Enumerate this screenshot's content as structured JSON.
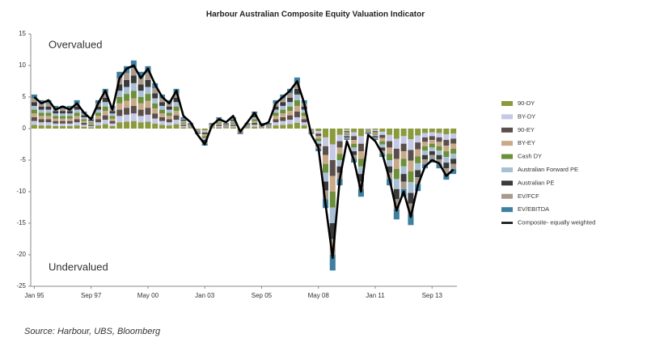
{
  "chart_data": {
    "type": "stacked-bar-line",
    "title": "Harbour Australian Composite Equity Valuation Indicator",
    "annotations": [
      "Overvalued",
      "Undervalued"
    ],
    "source": "Source: Harbour, UBS, Bloomberg",
    "legend": "right",
    "categories": [
      "Jan 95",
      null,
      null,
      null,
      null,
      null,
      null,
      null,
      "Sep 97",
      null,
      null,
      null,
      null,
      null,
      null,
      null,
      "May 00",
      null,
      null,
      null,
      null,
      null,
      null,
      null,
      "Jan 03",
      null,
      null,
      null,
      null,
      null,
      null,
      null,
      "Sep 05",
      null,
      null,
      null,
      null,
      null,
      null,
      null,
      "May 08",
      null,
      null,
      null,
      null,
      null,
      null,
      null,
      "Jan 11",
      null,
      null,
      null,
      null,
      null,
      null,
      null,
      "Sep 13",
      null,
      null,
      null
    ],
    "ylim": [
      -25,
      15
    ],
    "yticks": [
      -25,
      -20,
      -15,
      -10,
      -5,
      0,
      5,
      10,
      15
    ],
    "series": [
      {
        "name": "90-DY",
        "color": "#8a9a3c",
        "values": [
          0.6,
          0.5,
          0.5,
          0.4,
          0.4,
          0.4,
          0.5,
          0.3,
          0.2,
          0.5,
          0.7,
          0.4,
          1.0,
          1.1,
          1.2,
          1.0,
          1.1,
          0.8,
          0.6,
          0.5,
          0.7,
          0.2,
          0.1,
          -0.1,
          -0.3,
          0.1,
          0.2,
          0.1,
          0.2,
          -0.1,
          0.1,
          0.3,
          0.1,
          0.1,
          0.5,
          0.6,
          0.7,
          0.9,
          0.5,
          -0.1,
          -0.4,
          -1.4,
          -2.5,
          -1.0,
          -0.2,
          -0.6,
          -1.2,
          -0.1,
          -0.2,
          -0.5,
          -1.0,
          -1.6,
          -1.2,
          -1.7,
          -1.1,
          -0.7,
          -0.6,
          -0.7,
          -0.9,
          -0.8
        ]
      },
      {
        "name": "BY-DY",
        "color": "#c5c8e6",
        "values": [
          0.6,
          0.5,
          0.5,
          0.4,
          0.4,
          0.4,
          0.5,
          0.3,
          0.2,
          0.5,
          0.7,
          0.4,
          1.0,
          1.1,
          1.2,
          1.0,
          1.1,
          0.8,
          0.6,
          0.5,
          0.7,
          0.2,
          0.1,
          -0.1,
          -0.3,
          0.1,
          0.2,
          0.1,
          0.2,
          -0.1,
          0.1,
          0.3,
          0.1,
          0.1,
          0.5,
          0.6,
          0.7,
          0.9,
          0.5,
          -0.1,
          -0.4,
          -1.4,
          -2.5,
          -1.0,
          -0.2,
          -0.6,
          -1.2,
          -0.1,
          -0.2,
          -0.5,
          -1.0,
          -1.6,
          -1.2,
          -1.7,
          -1.1,
          -0.7,
          -0.6,
          -0.7,
          -0.9,
          -0.8
        ]
      },
      {
        "name": "90-EY",
        "color": "#5a4f4a",
        "values": [
          0.6,
          0.5,
          0.5,
          0.4,
          0.4,
          0.4,
          0.5,
          0.3,
          0.2,
          0.5,
          0.7,
          0.4,
          1.0,
          1.1,
          1.2,
          1.0,
          1.1,
          0.8,
          0.6,
          0.5,
          0.7,
          0.2,
          0.1,
          -0.1,
          -0.3,
          0.1,
          0.2,
          0.1,
          0.2,
          -0.1,
          0.1,
          0.3,
          0.1,
          0.1,
          0.5,
          0.6,
          0.7,
          0.9,
          0.5,
          -0.1,
          -0.4,
          -1.4,
          -2.5,
          -1.0,
          -0.2,
          -0.6,
          -1.2,
          -0.1,
          -0.2,
          -0.5,
          -1.0,
          -1.6,
          -1.2,
          -1.7,
          -1.1,
          -0.7,
          -0.6,
          -0.7,
          -0.9,
          -0.8
        ]
      },
      {
        "name": "BY-EY",
        "color": "#c8a98a",
        "values": [
          0.6,
          0.5,
          0.5,
          0.4,
          0.4,
          0.4,
          0.5,
          0.3,
          0.2,
          0.5,
          0.7,
          0.4,
          1.0,
          1.1,
          1.2,
          1.0,
          1.1,
          0.8,
          0.6,
          0.5,
          0.7,
          0.2,
          0.1,
          -0.1,
          -0.3,
          0.1,
          0.2,
          0.1,
          0.2,
          -0.1,
          0.1,
          0.3,
          0.1,
          0.1,
          0.5,
          0.6,
          0.7,
          0.9,
          0.5,
          -0.1,
          -0.4,
          -1.4,
          -2.5,
          -1.0,
          -0.2,
          -0.6,
          -1.2,
          -0.1,
          -0.2,
          -0.5,
          -1.0,
          -1.6,
          -1.2,
          -1.7,
          -1.1,
          -0.7,
          -0.6,
          -0.7,
          -0.9,
          -0.8
        ]
      },
      {
        "name": "Cash DY",
        "color": "#6b8f3a",
        "values": [
          0.6,
          0.5,
          0.5,
          0.4,
          0.4,
          0.4,
          0.5,
          0.3,
          0.2,
          0.5,
          0.7,
          0.4,
          1.0,
          1.1,
          1.2,
          1.0,
          1.1,
          0.8,
          0.6,
          0.5,
          0.7,
          0.2,
          0.1,
          -0.1,
          -0.3,
          0.1,
          0.2,
          0.1,
          0.2,
          -0.1,
          0.1,
          0.3,
          0.1,
          0.1,
          0.5,
          0.6,
          0.7,
          0.9,
          0.5,
          -0.1,
          -0.4,
          -1.4,
          -2.5,
          -1.0,
          -0.2,
          -0.6,
          -1.2,
          -0.1,
          -0.2,
          -0.5,
          -1.0,
          -1.6,
          -1.2,
          -1.7,
          -1.1,
          -0.7,
          -0.6,
          -0.7,
          -0.9,
          -0.8
        ]
      },
      {
        "name": "Australian Forward PE",
        "color": "#a9bfd6",
        "values": [
          0.6,
          0.5,
          0.5,
          0.4,
          0.4,
          0.4,
          0.5,
          0.3,
          0.2,
          0.5,
          0.7,
          0.4,
          1.0,
          1.1,
          1.2,
          1.0,
          1.1,
          0.8,
          0.6,
          0.5,
          0.7,
          0.2,
          0.1,
          -0.1,
          -0.3,
          0.1,
          0.2,
          0.1,
          0.2,
          -0.1,
          0.1,
          0.3,
          0.1,
          0.1,
          0.5,
          0.6,
          0.7,
          0.9,
          0.5,
          -0.1,
          -0.4,
          -1.4,
          -2.5,
          -1.0,
          -0.2,
          -0.6,
          -1.2,
          -0.1,
          -0.2,
          -0.5,
          -1.0,
          -1.6,
          -1.2,
          -1.7,
          -1.1,
          -0.7,
          -0.6,
          -0.7,
          -0.9,
          -0.8
        ]
      },
      {
        "name": "Australian PE",
        "color": "#3a3a3a",
        "values": [
          0.6,
          0.5,
          0.5,
          0.4,
          0.4,
          0.4,
          0.5,
          0.3,
          0.2,
          0.5,
          0.7,
          0.4,
          1.0,
          1.1,
          1.2,
          1.0,
          1.1,
          0.8,
          0.6,
          0.5,
          0.7,
          0.2,
          0.1,
          -0.1,
          -0.3,
          0.1,
          0.2,
          0.1,
          0.2,
          -0.1,
          0.1,
          0.3,
          0.1,
          0.1,
          0.5,
          0.6,
          0.7,
          0.9,
          0.5,
          -0.1,
          -0.4,
          -1.4,
          -2.5,
          -1.0,
          -0.2,
          -0.6,
          -1.2,
          -0.1,
          -0.2,
          -0.5,
          -1.0,
          -1.6,
          -1.2,
          -1.7,
          -1.1,
          -0.7,
          -0.6,
          -0.7,
          -0.9,
          -0.8
        ]
      },
      {
        "name": "EV/FCF",
        "color": "#a99a8e",
        "values": [
          0.6,
          0.5,
          0.5,
          0.4,
          0.4,
          0.4,
          0.5,
          0.3,
          0.2,
          0.5,
          0.7,
          0.4,
          1.0,
          1.1,
          1.2,
          1.0,
          1.1,
          0.8,
          0.6,
          0.5,
          0.7,
          0.2,
          0.1,
          -0.1,
          -0.3,
          0.1,
          0.2,
          0.1,
          0.2,
          -0.1,
          0.1,
          0.3,
          0.1,
          0.1,
          0.5,
          0.6,
          0.7,
          0.9,
          0.5,
          -0.1,
          -0.4,
          -1.4,
          -2.5,
          -1.0,
          -0.2,
          -0.6,
          -1.2,
          -0.1,
          -0.2,
          -0.5,
          -1.0,
          -1.6,
          -1.2,
          -1.7,
          -1.1,
          -0.7,
          -0.6,
          -0.7,
          -0.9,
          -0.8
        ]
      },
      {
        "name": "EV/EBITDA",
        "color": "#3f7f9f",
        "values": [
          0.6,
          0.5,
          0.5,
          0.4,
          0.4,
          0.4,
          0.5,
          0.3,
          0.2,
          0.5,
          0.7,
          0.4,
          1.0,
          1.1,
          1.2,
          1.0,
          1.1,
          0.8,
          0.6,
          0.5,
          0.7,
          0.2,
          0.1,
          -0.1,
          -0.3,
          0.1,
          0.2,
          0.1,
          0.2,
          -0.1,
          0.1,
          0.3,
          0.1,
          0.1,
          0.5,
          0.6,
          0.7,
          0.9,
          0.5,
          -0.1,
          -0.4,
          -1.4,
          -2.5,
          -1.0,
          -0.2,
          -0.6,
          -1.2,
          -0.1,
          -0.2,
          -0.5,
          -1.0,
          -1.6,
          -1.2,
          -1.7,
          -1.1,
          -0.7,
          -0.6,
          -0.7,
          -0.9,
          -0.8
        ]
      },
      {
        "name": "Composite- equally weighted",
        "color": "#000000",
        "kind": "line",
        "values": [
          5,
          4,
          4.5,
          3,
          3.5,
          3,
          4,
          2.5,
          1.5,
          4,
          6,
          3,
          8,
          9.5,
          10,
          8,
          9.5,
          7,
          5,
          4,
          6,
          2,
          1,
          -1,
          -2.5,
          0.5,
          1.5,
          1,
          2,
          -0.5,
          1,
          2.5,
          0.5,
          1,
          4,
          5,
          6,
          7.5,
          4,
          -1,
          -3,
          -12,
          -20.5,
          -8,
          -2,
          -5,
          -10,
          -1,
          -2,
          -4,
          -8,
          -13,
          -10,
          -14,
          -9,
          -6,
          -5,
          -5.5,
          -7.5,
          -6.5
        ]
      }
    ]
  }
}
